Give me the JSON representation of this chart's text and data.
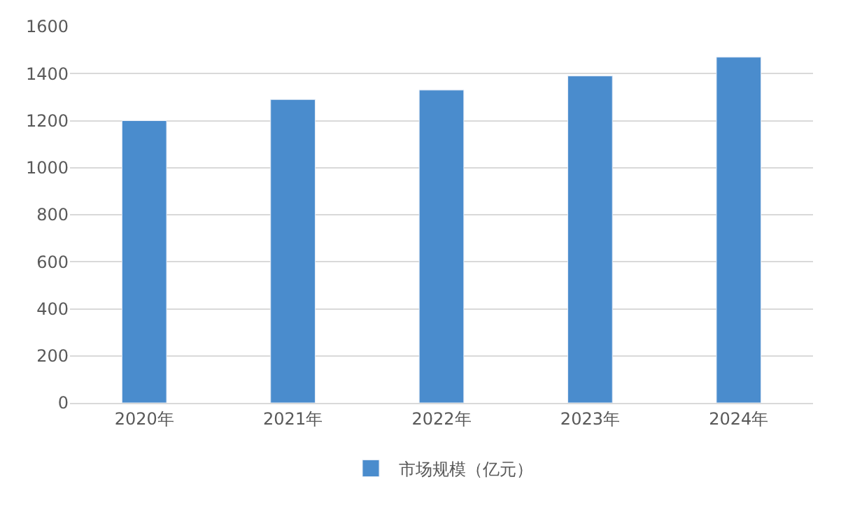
{
  "chart_data": {
    "type": "bar",
    "categories": [
      "2020年",
      "2021年",
      "2022年",
      "2023年",
      "2024年"
    ],
    "series": [
      {
        "name": "市场规模（亿元）",
        "color": "#4a8ccd",
        "values": [
          1200,
          1290,
          1330,
          1390,
          1470
        ]
      }
    ],
    "ylim": [
      0,
      1600
    ],
    "yticks": [
      0,
      200,
      400,
      600,
      800,
      1000,
      1200,
      1400,
      1600
    ],
    "grid": "y",
    "legend": "bottom"
  }
}
